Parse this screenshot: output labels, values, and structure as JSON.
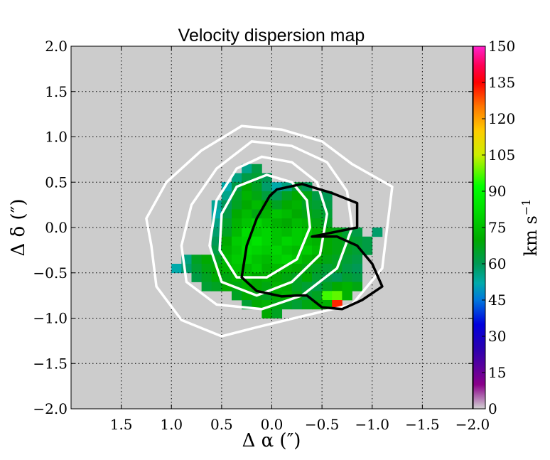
{
  "chart_data": {
    "type": "heatmap",
    "title": "Velocity dispersion map",
    "xlabel": "Δ α  (″)",
    "ylabel": "Δ δ  (″)",
    "colorbar_label": "km s",
    "colorbar_label_exp": "−1",
    "xlim": [
      2.0,
      -2.0
    ],
    "ylim": [
      -2.0,
      2.0
    ],
    "clim": [
      0,
      150
    ],
    "pixel_size": 0.1,
    "background_color": "#cccccc",
    "grid": true,
    "x_ticks": [
      {
        "v": 1.5,
        "label": "1.5"
      },
      {
        "v": 1.0,
        "label": "1.0"
      },
      {
        "v": 0.5,
        "label": "0.5"
      },
      {
        "v": 0.0,
        "label": "0.0"
      },
      {
        "v": -0.5,
        "label": "−0.5"
      },
      {
        "v": -1.0,
        "label": "−1.0"
      },
      {
        "v": -1.5,
        "label": "−1.5"
      },
      {
        "v": -2.0,
        "label": "−2.0"
      }
    ],
    "y_ticks": [
      {
        "v": 2.0,
        "label": "2.0"
      },
      {
        "v": 1.5,
        "label": "1.5"
      },
      {
        "v": 1.0,
        "label": "1.0"
      },
      {
        "v": 0.5,
        "label": "0.5"
      },
      {
        "v": 0.0,
        "label": "0.0"
      },
      {
        "v": -0.5,
        "label": "−0.5"
      },
      {
        "v": -1.0,
        "label": "−1.0"
      },
      {
        "v": -1.5,
        "label": "−1.5"
      },
      {
        "v": -2.0,
        "label": "−2.0"
      }
    ],
    "colorbar_ticks": [
      {
        "v": 0,
        "label": "0"
      },
      {
        "v": 15,
        "label": "15"
      },
      {
        "v": 30,
        "label": "30"
      },
      {
        "v": 45,
        "label": "45"
      },
      {
        "v": 60,
        "label": "60"
      },
      {
        "v": 75,
        "label": "75"
      },
      {
        "v": 90,
        "label": "90"
      },
      {
        "v": 105,
        "label": "105"
      },
      {
        "v": 120,
        "label": "120"
      },
      {
        "v": 135,
        "label": "135"
      },
      {
        "v": 150,
        "label": "150"
      }
    ],
    "pixels": [
      [
        0.25,
        0.65,
        55
      ],
      [
        0.15,
        0.65,
        62
      ],
      [
        0.35,
        0.55,
        56
      ],
      [
        0.25,
        0.55,
        62
      ],
      [
        0.15,
        0.55,
        64
      ],
      [
        0.05,
        0.55,
        60
      ],
      [
        0.45,
        0.45,
        52
      ],
      [
        0.35,
        0.45,
        62
      ],
      [
        0.25,
        0.45,
        70
      ],
      [
        0.15,
        0.45,
        66
      ],
      [
        0.05,
        0.45,
        58
      ],
      [
        -0.05,
        0.45,
        52
      ],
      [
        -0.15,
        0.45,
        56
      ],
      [
        -0.25,
        0.45,
        64
      ],
      [
        -0.35,
        0.45,
        60
      ],
      [
        0.45,
        0.35,
        55
      ],
      [
        0.35,
        0.35,
        65
      ],
      [
        0.25,
        0.35,
        72
      ],
      [
        0.15,
        0.35,
        68
      ],
      [
        0.05,
        0.35,
        63
      ],
      [
        -0.05,
        0.35,
        60
      ],
      [
        -0.15,
        0.35,
        66
      ],
      [
        -0.25,
        0.35,
        70
      ],
      [
        -0.35,
        0.35,
        68
      ],
      [
        -0.45,
        0.35,
        62
      ],
      [
        -0.55,
        0.35,
        60
      ],
      [
        0.55,
        0.25,
        54
      ],
      [
        0.45,
        0.25,
        60
      ],
      [
        0.35,
        0.25,
        66
      ],
      [
        0.25,
        0.25,
        70
      ],
      [
        0.15,
        0.25,
        74
      ],
      [
        0.05,
        0.25,
        70
      ],
      [
        -0.05,
        0.25,
        66
      ],
      [
        -0.15,
        0.25,
        70
      ],
      [
        -0.25,
        0.25,
        72
      ],
      [
        -0.35,
        0.25,
        66
      ],
      [
        -0.45,
        0.25,
        64
      ],
      [
        -0.55,
        0.25,
        62
      ],
      [
        0.55,
        0.15,
        52
      ],
      [
        0.45,
        0.15,
        62
      ],
      [
        0.35,
        0.15,
        70
      ],
      [
        0.25,
        0.15,
        74
      ],
      [
        0.15,
        0.15,
        68
      ],
      [
        0.05,
        0.15,
        72
      ],
      [
        -0.05,
        0.15,
        76
      ],
      [
        -0.15,
        0.15,
        74
      ],
      [
        -0.25,
        0.15,
        70
      ],
      [
        -0.35,
        0.15,
        68
      ],
      [
        -0.45,
        0.15,
        66
      ],
      [
        -0.55,
        0.15,
        64
      ],
      [
        0.55,
        0.05,
        56
      ],
      [
        0.45,
        0.05,
        65
      ],
      [
        0.35,
        0.05,
        72
      ],
      [
        0.25,
        0.05,
        76
      ],
      [
        0.15,
        0.05,
        80
      ],
      [
        0.05,
        0.05,
        76
      ],
      [
        -0.05,
        0.05,
        72
      ],
      [
        -0.15,
        0.05,
        70
      ],
      [
        -0.25,
        0.05,
        74
      ],
      [
        -0.35,
        0.05,
        72
      ],
      [
        -0.45,
        0.05,
        68
      ],
      [
        -0.55,
        0.05,
        66
      ],
      [
        0.55,
        -0.05,
        58
      ],
      [
        0.45,
        -0.05,
        66
      ],
      [
        0.35,
        -0.05,
        74
      ],
      [
        0.25,
        -0.05,
        82
      ],
      [
        0.15,
        -0.05,
        78
      ],
      [
        0.05,
        -0.05,
        80
      ],
      [
        -0.05,
        -0.05,
        76
      ],
      [
        -0.15,
        -0.05,
        74
      ],
      [
        -0.25,
        -0.05,
        78
      ],
      [
        -0.35,
        -0.05,
        76
      ],
      [
        -0.45,
        -0.05,
        72
      ],
      [
        -0.55,
        -0.05,
        70
      ],
      [
        -0.65,
        -0.05,
        68
      ],
      [
        -0.75,
        -0.05,
        64
      ],
      [
        -0.85,
        -0.05,
        62
      ],
      [
        -1.05,
        -0.05,
        58
      ],
      [
        0.55,
        -0.15,
        60
      ],
      [
        0.45,
        -0.15,
        70
      ],
      [
        0.35,
        -0.15,
        78
      ],
      [
        0.25,
        -0.15,
        80
      ],
      [
        0.15,
        -0.15,
        84
      ],
      [
        0.05,
        -0.15,
        80
      ],
      [
        -0.05,
        -0.15,
        76
      ],
      [
        -0.15,
        -0.15,
        80
      ],
      [
        -0.25,
        -0.15,
        78
      ],
      [
        -0.35,
        -0.15,
        74
      ],
      [
        -0.45,
        -0.15,
        72
      ],
      [
        -0.55,
        -0.15,
        70
      ],
      [
        -0.65,
        -0.15,
        68
      ],
      [
        -0.75,
        -0.15,
        66
      ],
      [
        -0.85,
        -0.15,
        64
      ],
      [
        -0.95,
        -0.15,
        62
      ],
      [
        0.55,
        -0.25,
        62
      ],
      [
        0.45,
        -0.25,
        72
      ],
      [
        0.35,
        -0.25,
        76
      ],
      [
        0.25,
        -0.25,
        82
      ],
      [
        0.15,
        -0.25,
        80
      ],
      [
        0.05,
        -0.25,
        78
      ],
      [
        -0.05,
        -0.25,
        80
      ],
      [
        -0.15,
        -0.25,
        76
      ],
      [
        -0.25,
        -0.25,
        74
      ],
      [
        -0.35,
        -0.25,
        78
      ],
      [
        -0.45,
        -0.25,
        74
      ],
      [
        -0.55,
        -0.25,
        70
      ],
      [
        -0.65,
        -0.25,
        68
      ],
      [
        -0.75,
        -0.25,
        66
      ],
      [
        -0.85,
        -0.25,
        64
      ],
      [
        -0.95,
        -0.25,
        62
      ],
      [
        0.85,
        -0.35,
        56
      ],
      [
        0.75,
        -0.35,
        66
      ],
      [
        0.65,
        -0.35,
        70
      ],
      [
        0.55,
        -0.35,
        66
      ],
      [
        0.45,
        -0.35,
        74
      ],
      [
        0.35,
        -0.35,
        78
      ],
      [
        0.25,
        -0.35,
        80
      ],
      [
        0.15,
        -0.35,
        76
      ],
      [
        0.05,
        -0.35,
        74
      ],
      [
        -0.05,
        -0.35,
        78
      ],
      [
        -0.15,
        -0.35,
        80
      ],
      [
        -0.25,
        -0.35,
        76
      ],
      [
        -0.35,
        -0.35,
        72
      ],
      [
        -0.45,
        -0.35,
        70
      ],
      [
        -0.55,
        -0.35,
        68
      ],
      [
        -0.65,
        -0.35,
        66
      ],
      [
        -0.75,
        -0.35,
        64
      ],
      [
        -0.85,
        -0.35,
        62
      ],
      [
        0.95,
        -0.45,
        52
      ],
      [
        0.85,
        -0.45,
        58
      ],
      [
        0.75,
        -0.45,
        64
      ],
      [
        0.65,
        -0.45,
        68
      ],
      [
        0.55,
        -0.45,
        70
      ],
      [
        0.45,
        -0.45,
        72
      ],
      [
        0.35,
        -0.45,
        76
      ],
      [
        0.25,
        -0.45,
        74
      ],
      [
        0.15,
        -0.45,
        78
      ],
      [
        0.05,
        -0.45,
        72
      ],
      [
        -0.05,
        -0.45,
        74
      ],
      [
        -0.15,
        -0.45,
        72
      ],
      [
        -0.25,
        -0.45,
        70
      ],
      [
        -0.35,
        -0.45,
        68
      ],
      [
        -0.45,
        -0.45,
        66
      ],
      [
        -0.55,
        -0.45,
        64
      ],
      [
        -0.65,
        -0.45,
        66
      ],
      [
        -0.75,
        -0.45,
        62
      ],
      [
        -0.85,
        -0.45,
        60
      ],
      [
        0.75,
        -0.55,
        62
      ],
      [
        0.65,
        -0.55,
        66
      ],
      [
        0.55,
        -0.55,
        70
      ],
      [
        0.45,
        -0.55,
        68
      ],
      [
        0.35,
        -0.55,
        72
      ],
      [
        0.25,
        -0.55,
        74
      ],
      [
        0.15,
        -0.55,
        70
      ],
      [
        0.05,
        -0.55,
        72
      ],
      [
        -0.05,
        -0.55,
        70
      ],
      [
        -0.15,
        -0.55,
        68
      ],
      [
        -0.25,
        -0.55,
        66
      ],
      [
        -0.35,
        -0.55,
        70
      ],
      [
        -0.45,
        -0.55,
        64
      ],
      [
        -0.55,
        -0.55,
        62
      ],
      [
        -0.65,
        -0.55,
        60
      ],
      [
        -0.75,
        -0.55,
        64
      ],
      [
        -0.85,
        -0.55,
        62
      ],
      [
        0.65,
        -0.65,
        64
      ],
      [
        0.55,
        -0.65,
        66
      ],
      [
        0.45,
        -0.65,
        70
      ],
      [
        0.35,
        -0.65,
        68
      ],
      [
        0.25,
        -0.65,
        72
      ],
      [
        0.15,
        -0.65,
        70
      ],
      [
        0.05,
        -0.65,
        68
      ],
      [
        -0.05,
        -0.65,
        72
      ],
      [
        -0.15,
        -0.65,
        70
      ],
      [
        -0.25,
        -0.65,
        66
      ],
      [
        -0.35,
        -0.65,
        64
      ],
      [
        -0.45,
        -0.65,
        62
      ],
      [
        -0.55,
        -0.65,
        66
      ],
      [
        -0.65,
        -0.65,
        70
      ],
      [
        -0.75,
        -0.65,
        72
      ],
      [
        -0.85,
        -0.65,
        68
      ],
      [
        0.35,
        -0.75,
        66
      ],
      [
        0.25,
        -0.75,
        70
      ],
      [
        0.15,
        -0.75,
        68
      ],
      [
        0.05,
        -0.75,
        66
      ],
      [
        -0.05,
        -0.75,
        70
      ],
      [
        -0.15,
        -0.75,
        72
      ],
      [
        -0.25,
        -0.75,
        68
      ],
      [
        -0.35,
        -0.75,
        64
      ],
      [
        -0.45,
        -0.75,
        66
      ],
      [
        -0.55,
        -0.75,
        96
      ],
      [
        -0.65,
        -0.75,
        98
      ],
      [
        -0.75,
        -0.75,
        72
      ],
      [
        0.25,
        -0.85,
        64
      ],
      [
        0.15,
        -0.85,
        70
      ],
      [
        0.05,
        -0.85,
        72
      ],
      [
        -0.05,
        -0.85,
        68
      ],
      [
        -0.15,
        -0.85,
        66
      ],
      [
        -0.25,
        -0.85,
        64
      ],
      [
        -0.35,
        -0.85,
        68
      ],
      [
        -0.45,
        -0.85,
        70
      ],
      [
        -0.55,
        -0.85,
        72
      ],
      [
        -0.65,
        -0.85,
        132
      ],
      [
        0.05,
        -0.95,
        70
      ],
      [
        -0.05,
        -0.95,
        66
      ]
    ],
    "contours": [
      {
        "name": "contour-white-outer",
        "color": "#ffffff",
        "points": [
          [
            0.3,
            1.12
          ],
          [
            -0.1,
            1.08
          ],
          [
            -0.5,
            0.95
          ],
          [
            -0.8,
            0.7
          ],
          [
            -1.2,
            0.45
          ],
          [
            -1.15,
            0.0
          ],
          [
            -1.1,
            -0.45
          ],
          [
            -0.8,
            -0.85
          ],
          [
            -0.3,
            -0.98
          ],
          [
            0.15,
            -1.1
          ],
          [
            0.5,
            -1.2
          ],
          [
            0.9,
            -1.02
          ],
          [
            1.15,
            -0.65
          ],
          [
            1.2,
            -0.2
          ],
          [
            1.25,
            0.1
          ],
          [
            1.05,
            0.5
          ],
          [
            0.7,
            0.85
          ],
          [
            0.3,
            1.12
          ]
        ]
      },
      {
        "name": "contour-white-2",
        "color": "#ffffff",
        "points": [
          [
            0.2,
            0.95
          ],
          [
            -0.2,
            0.9
          ],
          [
            -0.55,
            0.72
          ],
          [
            -0.75,
            0.4
          ],
          [
            -0.8,
            0.0
          ],
          [
            -0.65,
            -0.45
          ],
          [
            -0.3,
            -0.75
          ],
          [
            0.1,
            -0.9
          ],
          [
            0.55,
            -0.85
          ],
          [
            0.85,
            -0.6
          ],
          [
            0.9,
            -0.2
          ],
          [
            0.8,
            0.25
          ],
          [
            0.55,
            0.65
          ],
          [
            0.2,
            0.95
          ]
        ]
      },
      {
        "name": "contour-white-3",
        "color": "#ffffff",
        "points": [
          [
            0.1,
            0.78
          ],
          [
            -0.2,
            0.72
          ],
          [
            -0.45,
            0.5
          ],
          [
            -0.55,
            0.15
          ],
          [
            -0.48,
            -0.3
          ],
          [
            -0.2,
            -0.6
          ],
          [
            0.15,
            -0.75
          ],
          [
            0.5,
            -0.6
          ],
          [
            0.62,
            -0.2
          ],
          [
            0.55,
            0.3
          ],
          [
            0.35,
            0.65
          ],
          [
            0.1,
            0.78
          ]
        ]
      },
      {
        "name": "contour-white-4",
        "color": "#ffffff",
        "points": [
          [
            0.05,
            0.58
          ],
          [
            -0.2,
            0.5
          ],
          [
            -0.35,
            0.3
          ],
          [
            -0.38,
            0.0
          ],
          [
            -0.25,
            -0.35
          ],
          [
            0.05,
            -0.55
          ],
          [
            0.35,
            -0.55
          ],
          [
            0.52,
            -0.25
          ],
          [
            0.5,
            0.15
          ],
          [
            0.35,
            0.45
          ],
          [
            0.05,
            0.58
          ]
        ]
      },
      {
        "name": "contour-black",
        "color": "#000000",
        "points": [
          [
            -0.05,
            0.42
          ],
          [
            -0.3,
            0.48
          ],
          [
            -0.6,
            0.38
          ],
          [
            -0.85,
            0.27
          ],
          [
            -0.85,
            0.0
          ],
          [
            -0.4,
            -0.1
          ],
          [
            -0.65,
            -0.1
          ],
          [
            -0.85,
            -0.2
          ],
          [
            -1.0,
            -0.4
          ],
          [
            -1.1,
            -0.65
          ],
          [
            -0.9,
            -0.8
          ],
          [
            -0.7,
            -0.9
          ],
          [
            -0.5,
            -0.88
          ],
          [
            -0.35,
            -0.75
          ],
          [
            -0.25,
            -0.75
          ],
          [
            -0.1,
            -0.76
          ],
          [
            0.15,
            -0.7
          ],
          [
            0.3,
            -0.55
          ],
          [
            0.25,
            -0.2
          ],
          [
            0.15,
            0.1
          ],
          [
            0.02,
            0.35
          ],
          [
            -0.05,
            0.42
          ]
        ]
      }
    ]
  }
}
